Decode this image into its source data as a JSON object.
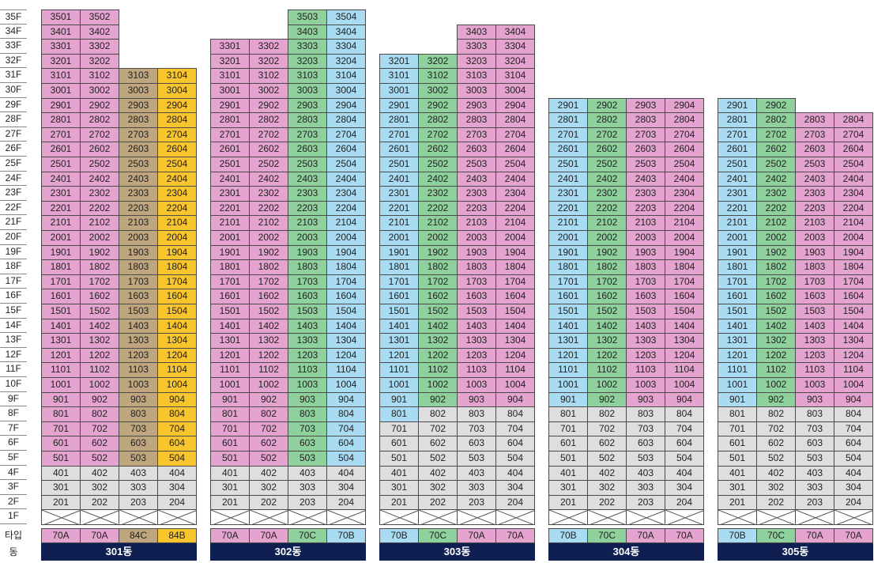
{
  "labels": {
    "type": "타입",
    "dong": "동"
  },
  "colors": {
    "70A": "#e5a3cf",
    "70B": "#a9dcf3",
    "70C": "#8fd19c",
    "84C": "#bfa67f",
    "84B": "#f9c52d",
    "gray": "#dedede",
    "empty": "#ffffff",
    "dong_bg": "#0f1f52",
    "border": "#4a4a4a"
  },
  "floors": [
    "35F",
    "34F",
    "33F",
    "32F",
    "31F",
    "30F",
    "29F",
    "28F",
    "27F",
    "26F",
    "25F",
    "24F",
    "23F",
    "22F",
    "21F",
    "20F",
    "19F",
    "18F",
    "17F",
    "16F",
    "15F",
    "14F",
    "13F",
    "12F",
    "11F",
    "10F",
    "9F",
    "8F",
    "7F",
    "6F",
    "5F",
    "4F",
    "3F",
    "2F",
    "1F"
  ],
  "buildings": [
    {
      "name": "301동",
      "lines": [
        {
          "type": "70A",
          "top": 35,
          "color_from": 5
        },
        {
          "type": "70A",
          "top": 35,
          "color_from": 5
        },
        {
          "type": "84C",
          "top": 31,
          "color_from": 5
        },
        {
          "type": "84B",
          "top": 31,
          "color_from": 5
        }
      ]
    },
    {
      "name": "302동",
      "lines": [
        {
          "type": "70A",
          "top": 33,
          "color_from": 5
        },
        {
          "type": "70A",
          "top": 33,
          "color_from": 5
        },
        {
          "type": "70C",
          "top": 35,
          "color_from": 5
        },
        {
          "type": "70B",
          "top": 35,
          "color_from": 5
        }
      ]
    },
    {
      "name": "303동",
      "lines": [
        {
          "type": "70B",
          "top": 32,
          "color_from": 8
        },
        {
          "type": "70C",
          "top": 32,
          "color_from": 9
        },
        {
          "type": "70A",
          "top": 34,
          "color_from": 9
        },
        {
          "type": "70A",
          "top": 34,
          "color_from": 9
        }
      ]
    },
    {
      "name": "304동",
      "lines": [
        {
          "type": "70B",
          "top": 29,
          "color_from": 9
        },
        {
          "type": "70C",
          "top": 29,
          "color_from": 9
        },
        {
          "type": "70A",
          "top": 29,
          "color_from": 9
        },
        {
          "type": "70A",
          "top": 29,
          "color_from": 9
        }
      ]
    },
    {
      "name": "305동",
      "lines": [
        {
          "type": "70B",
          "top": 29,
          "color_from": 9
        },
        {
          "type": "70C",
          "top": 29,
          "color_from": 9
        },
        {
          "type": "70A",
          "top": 28,
          "color_from": 9
        },
        {
          "type": "70A",
          "top": 28,
          "color_from": 9
        }
      ]
    }
  ]
}
